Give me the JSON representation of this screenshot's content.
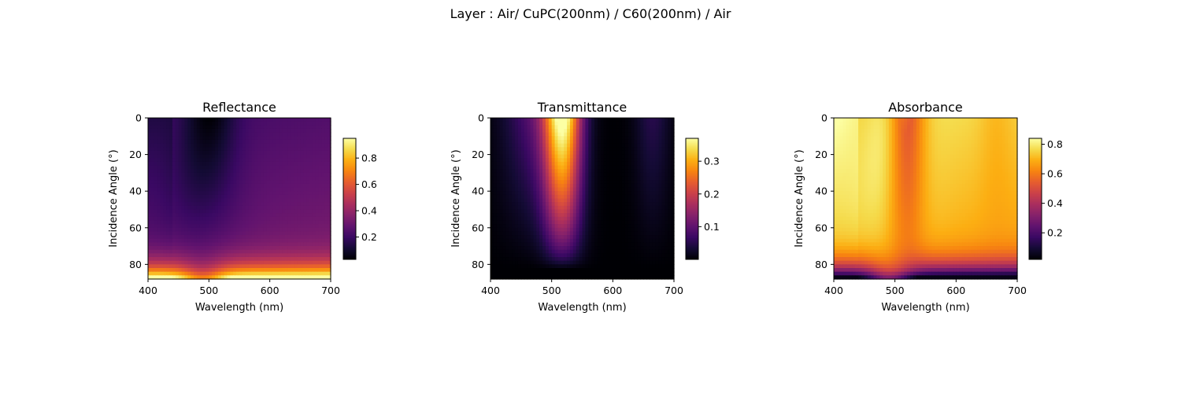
{
  "suptitle": "Layer : Air/ CuPC(200nm) / C60(200nm) / Air",
  "chart_data": [
    {
      "type": "heatmap",
      "title": "Reflectance",
      "xlabel": "Wavelength (nm)",
      "ylabel": "Incidence Angle (°)",
      "xlim": [
        400,
        700
      ],
      "ylim": [
        88,
        0
      ],
      "xticks": [
        "400",
        "500",
        "600",
        "700"
      ],
      "yticks": [
        "0",
        "20",
        "40",
        "60",
        "80"
      ],
      "colormap": "inferno",
      "colorbar": {
        "range": [
          0.03,
          0.95
        ],
        "ticks": [
          "0.2",
          "0.4",
          "0.6",
          "0.8"
        ]
      },
      "features": [
        {
          "description_value": "minimum near 490-510 nm at low angles",
          "value": 0.03
        },
        {
          "description_value": "maximum near 88 deg",
          "value": 0.95
        }
      ]
    },
    {
      "type": "heatmap",
      "title": "Transmittance",
      "xlabel": "Wavelength (nm)",
      "ylabel": "Incidence Angle (°)",
      "xlim": [
        400,
        700
      ],
      "ylim": [
        88,
        0
      ],
      "xticks": [
        "400",
        "500",
        "600",
        "700"
      ],
      "yticks": [
        "0",
        "20",
        "40",
        "60",
        "80"
      ],
      "colormap": "inferno",
      "colorbar": {
        "range": [
          0.0,
          0.37
        ],
        "ticks": [
          "0.1",
          "0.2",
          "0.3"
        ]
      },
      "features": [
        {
          "description_value": "peak near 520 nm at low angles",
          "value": 0.37
        },
        {
          "description_value": "near zero above 80 deg",
          "value": 0.0
        }
      ]
    },
    {
      "type": "heatmap",
      "title": "Absorbance",
      "xlabel": "Wavelength (nm)",
      "ylabel": "Incidence Angle (°)",
      "xlim": [
        400,
        700
      ],
      "ylim": [
        88,
        0
      ],
      "xticks": [
        "400",
        "500",
        "600",
        "700"
      ],
      "yticks": [
        "0",
        "20",
        "40",
        "60",
        "80"
      ],
      "colormap": "inferno",
      "colorbar": {
        "range": [
          0.02,
          0.84
        ],
        "ticks": [
          "0.2",
          "0.4",
          "0.6",
          "0.8"
        ]
      },
      "features": [
        {
          "description_value": "high near 400-450 nm and 560-650 nm at low angles",
          "value": 0.84
        },
        {
          "description_value": "minimum near 88 deg",
          "value": 0.02
        }
      ]
    }
  ]
}
